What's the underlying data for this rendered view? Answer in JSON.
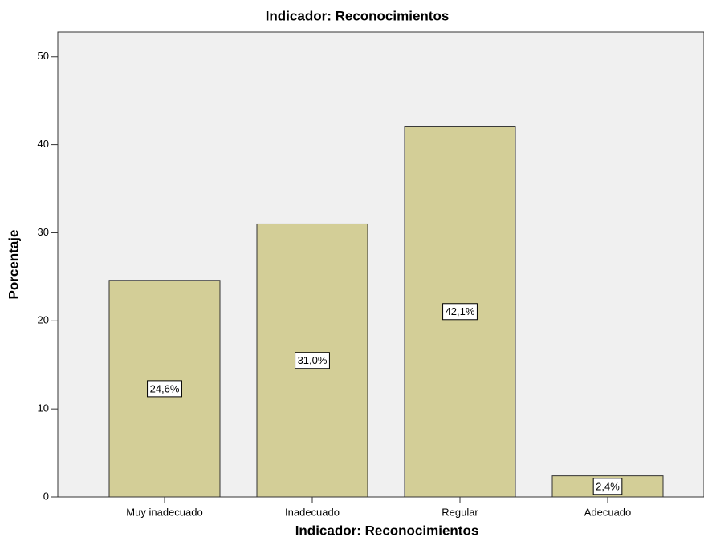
{
  "chart_data": {
    "type": "bar",
    "title": "Indicador: Reconocimientos",
    "x_label": "Indicador: Reconocimientos",
    "y_label": "Porcentaje",
    "categories": [
      "Muy inadecuado",
      "Inadecuado",
      "Regular",
      "Adecuado"
    ],
    "values": [
      24.6,
      31.0,
      42.1,
      2.4
    ],
    "value_labels": [
      "24,6%",
      "31,0%",
      "42,1%",
      "2,4%"
    ],
    "color": "#d3ce97",
    "ylim": [
      0,
      52.8
    ],
    "yticks": [
      0,
      10,
      20,
      30,
      40,
      50
    ],
    "grid": false
  }
}
